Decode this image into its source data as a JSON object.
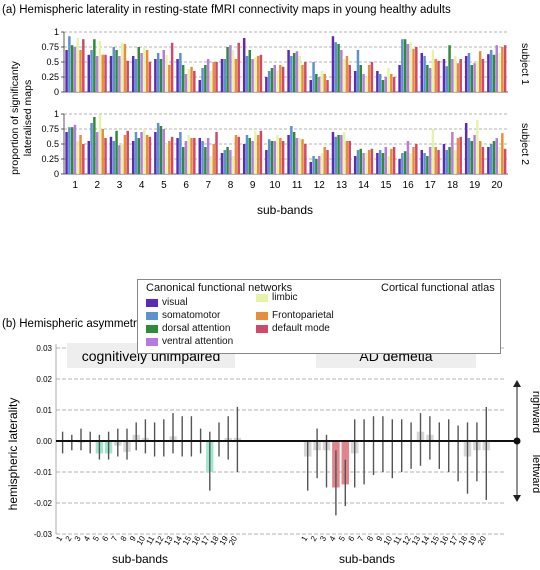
{
  "panel_a": {
    "title": "(a) Hemispheric laterality in resting-state fMRI connectivity maps in young healthy adults",
    "ylabel_lines": [
      "proportion of significanty",
      "lateralised maps"
    ],
    "xlabel": "sub-bands",
    "subject_labels": [
      "subject 1",
      "subject 2"
    ],
    "yticks": [
      "0",
      "0.25",
      "0.5",
      "0.75",
      "1"
    ],
    "xticks": [
      "1",
      "2",
      "3",
      "4",
      "5",
      "6",
      "7",
      "8",
      "9",
      "10",
      "11",
      "12",
      "13",
      "14",
      "15",
      "16",
      "17",
      "18",
      "19",
      "20"
    ],
    "legend_title": "Canonical functional networks",
    "atlas_title": "Cortical functional atlas"
  },
  "panel_b": {
    "title": "(b) Hemispheric asymmetry of tau pathology PET spatial maps in Alzheimer’s disease",
    "ylabel": "hemispheric laterality",
    "xlabel": "sub-bands",
    "group_labels": [
      "cognitively unimpaired",
      "AD demetia"
    ],
    "direction_labels": [
      "righward",
      "leftward"
    ],
    "yticks": [
      "0.03",
      "0.02",
      "0.01",
      "0.00",
      "-0.01",
      "-0.02",
      "-0.03"
    ]
  },
  "colors": {
    "visual": "#5b2bb5",
    "somatomotor": "#5b92cf",
    "dorsal_attention": "#2f8a3a",
    "ventral_attention": "#b77be0",
    "limbic": "#e4f4a8",
    "frontoparietal": "#e88e3a",
    "default_mode": "#cf4a6a",
    "cu_highlight": "#9ee8d2",
    "ad_highlight": "#e0868a",
    "neutral_bar": "#d6d6d6",
    "errorbar": "#555555"
  },
  "chart_data": [
    {
      "type": "bar",
      "title": "subject 1",
      "categories": [
        "1",
        "2",
        "3",
        "4",
        "5",
        "6",
        "7",
        "8",
        "9",
        "10",
        "11",
        "12",
        "13",
        "14",
        "15",
        "16",
        "17",
        "18",
        "19",
        "20"
      ],
      "ylim": [
        0,
        1
      ],
      "series": [
        {
          "name": "visual",
          "values": [
            0.7,
            0.62,
            0.6,
            0.6,
            0.55,
            0.55,
            0.2,
            0.55,
            0.9,
            0.25,
            0.7,
            0.2,
            0.93,
            0.35,
            0.35,
            0.45,
            0.65,
            0.55,
            0.6,
            0.63
          ]
        },
        {
          "name": "somatomotor",
          "values": [
            0.93,
            0.7,
            0.75,
            0.55,
            0.65,
            0.65,
            0.4,
            0.55,
            0.6,
            0.35,
            0.6,
            0.5,
            0.83,
            0.7,
            0.3,
            0.88,
            0.6,
            0.43,
            0.65,
            0.7
          ]
        },
        {
          "name": "dorsal attention",
          "values": [
            0.78,
            0.88,
            0.7,
            0.75,
            0.55,
            0.45,
            0.45,
            0.75,
            0.7,
            0.4,
            0.65,
            0.3,
            0.8,
            0.45,
            0.2,
            0.88,
            0.45,
            0.78,
            0.45,
            0.62
          ]
        },
        {
          "name": "ventral attention",
          "values": [
            0.75,
            0.6,
            0.6,
            0.65,
            0.7,
            0.3,
            0.55,
            0.78,
            0.55,
            0.45,
            0.68,
            0.25,
            0.7,
            0.3,
            0.25,
            0.8,
            0.4,
            0.55,
            0.48,
            0.78
          ]
        },
        {
          "name": "limbic",
          "values": [
            0.9,
            0.85,
            0.82,
            0.75,
            0.62,
            0.38,
            0.35,
            0.7,
            0.58,
            0.35,
            0.6,
            0.35,
            0.55,
            0.25,
            0.4,
            0.83,
            0.7,
            0.6,
            0.52,
            0.65
          ]
        },
        {
          "name": "Frontoparietal",
          "values": [
            0.7,
            0.62,
            0.8,
            0.7,
            0.45,
            0.42,
            0.5,
            0.55,
            0.6,
            0.45,
            0.45,
            0.3,
            0.6,
            0.45,
            0.3,
            0.72,
            0.55,
            0.48,
            0.68,
            0.75
          ]
        },
        {
          "name": "default mode",
          "values": [
            0.88,
            0.62,
            0.52,
            0.5,
            0.82,
            0.35,
            0.5,
            0.82,
            0.62,
            0.42,
            0.5,
            0.2,
            0.45,
            0.5,
            0.25,
            0.75,
            0.52,
            0.55,
            0.55,
            0.78
          ]
        }
      ]
    },
    {
      "type": "bar",
      "title": "subject 2",
      "categories": [
        "1",
        "2",
        "3",
        "4",
        "5",
        "6",
        "7",
        "8",
        "9",
        "10",
        "11",
        "12",
        "13",
        "14",
        "15",
        "16",
        "17",
        "18",
        "19",
        "20"
      ],
      "ylim": [
        0,
        1
      ],
      "series": [
        {
          "name": "visual",
          "values": [
            0.7,
            0.55,
            0.62,
            0.55,
            0.7,
            0.6,
            0.6,
            0.35,
            0.5,
            0.4,
            0.65,
            0.2,
            0.7,
            0.3,
            0.35,
            0.25,
            0.4,
            0.5,
            0.85,
            0.45
          ]
        },
        {
          "name": "somatomotor",
          "values": [
            0.78,
            0.85,
            0.55,
            0.7,
            0.85,
            0.7,
            0.55,
            0.4,
            0.65,
            0.58,
            0.8,
            0.3,
            0.62,
            0.4,
            0.4,
            0.35,
            0.35,
            0.4,
            0.6,
            0.5
          ]
        },
        {
          "name": "dorsal attention",
          "values": [
            0.78,
            0.95,
            0.72,
            0.6,
            0.8,
            0.45,
            0.45,
            0.45,
            0.6,
            0.55,
            0.7,
            0.25,
            0.65,
            0.42,
            0.35,
            0.38,
            0.3,
            0.45,
            0.55,
            0.55
          ]
        },
        {
          "name": "ventral attention",
          "values": [
            0.82,
            0.7,
            0.48,
            0.7,
            0.75,
            0.55,
            0.6,
            0.4,
            0.55,
            0.55,
            0.6,
            0.3,
            0.65,
            0.35,
            0.45,
            0.55,
            0.45,
            0.7,
            0.65,
            0.6
          ]
        },
        {
          "name": "limbic",
          "values": [
            0.55,
            0.98,
            0.5,
            0.75,
            0.5,
            0.65,
            0.3,
            0.3,
            0.72,
            0.65,
            0.6,
            0.35,
            0.7,
            0.35,
            0.3,
            0.35,
            0.75,
            0.4,
            0.9,
            0.45
          ]
        },
        {
          "name": "Frontoparietal",
          "values": [
            0.65,
            0.75,
            0.65,
            0.65,
            0.55,
            0.6,
            0.5,
            0.65,
            0.65,
            0.6,
            0.58,
            0.45,
            0.55,
            0.4,
            0.42,
            0.45,
            0.45,
            0.6,
            0.55,
            0.68
          ]
        },
        {
          "name": "default mode",
          "values": [
            0.5,
            0.6,
            0.72,
            0.62,
            0.62,
            0.6,
            0.7,
            0.62,
            0.72,
            0.55,
            0.5,
            0.4,
            0.55,
            0.42,
            0.45,
            0.5,
            0.4,
            0.62,
            0.45,
            0.42
          ]
        }
      ]
    },
    {
      "type": "bar",
      "title": "cognitively unimpaired",
      "categories": [
        "1",
        "2",
        "3",
        "4",
        "5",
        "6",
        "7",
        "8",
        "9",
        "10",
        "11",
        "12",
        "13",
        "14",
        "15",
        "16",
        "17",
        "18",
        "19",
        "20"
      ],
      "ylim": [
        -0.03,
        0.03
      ],
      "ylabel": "hemispheric laterality",
      "values": [
        0.0,
        0.0,
        -0.0005,
        0.0,
        -0.004,
        -0.004,
        -0.0015,
        -0.0035,
        0.002,
        0.001,
        0.0,
        0.0,
        0.0015,
        0.0,
        0.0,
        0.0,
        -0.01,
        0.0,
        0.001,
        0.001
      ],
      "err_low": [
        -0.004,
        -0.003,
        -0.003,
        -0.004,
        -0.006,
        -0.006,
        -0.005,
        -0.006,
        -0.003,
        -0.004,
        -0.005,
        -0.005,
        -0.004,
        -0.005,
        -0.005,
        -0.004,
        -0.016,
        -0.005,
        -0.006,
        -0.01
      ],
      "err_high": [
        0.003,
        0.002,
        0.004,
        0.003,
        0.002,
        0.003,
        0.004,
        0.004,
        0.006,
        0.007,
        0.006,
        0.007,
        0.009,
        0.008,
        0.008,
        0.004,
        0.003,
        0.006,
        0.008,
        0.011
      ],
      "significant": [
        5,
        6,
        17
      ]
    },
    {
      "type": "bar",
      "title": "AD demetia",
      "categories": [
        "1",
        "2",
        "3",
        "4",
        "5",
        "6",
        "7",
        "8",
        "9",
        "10",
        "11",
        "12",
        "13",
        "14",
        "15",
        "16",
        "17",
        "18",
        "19",
        "20"
      ],
      "ylim": [
        -0.03,
        0.03
      ],
      "values": [
        -0.005,
        -0.003,
        -0.003,
        -0.015,
        -0.014,
        -0.004,
        0.0,
        0.0,
        0.0,
        0.0,
        0.0,
        0.0,
        0.003,
        0.002,
        0.0,
        0.0,
        0.0,
        -0.005,
        -0.003,
        -0.003
      ],
      "err_low": [
        -0.016,
        -0.012,
        -0.015,
        -0.024,
        -0.021,
        -0.015,
        -0.014,
        -0.011,
        -0.01,
        -0.012,
        -0.01,
        -0.009,
        -0.008,
        -0.006,
        -0.009,
        -0.01,
        -0.013,
        -0.017,
        -0.013,
        -0.019
      ],
      "err_high": [
        0.0,
        0.004,
        0.002,
        -0.003,
        -0.006,
        0.007,
        0.007,
        0.008,
        0.008,
        0.007,
        0.007,
        0.006,
        0.009,
        0.008,
        0.006,
        0.007,
        0.005,
        0.006,
        0.006,
        0.011
      ],
      "significant": [
        4,
        5
      ]
    }
  ]
}
